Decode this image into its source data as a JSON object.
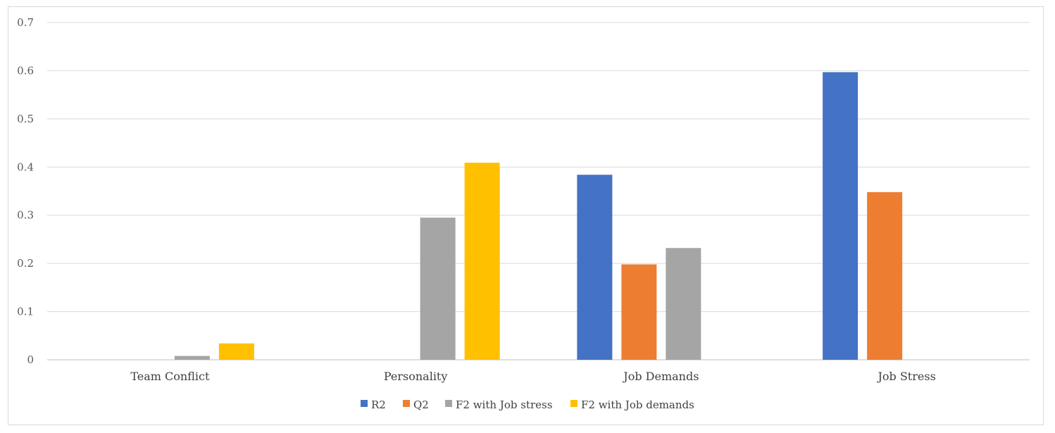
{
  "chart_data": {
    "type": "bar",
    "categories": [
      "Team Conflict",
      "Personality",
      "Job Demands",
      "Job Stress"
    ],
    "series": [
      {
        "name": "R2",
        "color": "#4472c4",
        "values": [
          null,
          null,
          0.384,
          0.597
        ]
      },
      {
        "name": "Q2",
        "color": "#ed7d31",
        "values": [
          null,
          null,
          0.198,
          0.348
        ]
      },
      {
        "name": "F2 with Job stress",
        "color": "#a5a5a5",
        "values": [
          0.008,
          0.295,
          0.232,
          null
        ]
      },
      {
        "name": "F2 with Job demands",
        "color": "#ffc000",
        "values": [
          0.034,
          0.409,
          null,
          null
        ]
      }
    ],
    "ylim": [
      0,
      0.7
    ],
    "yticks": [
      "0",
      "0.1",
      "0.2",
      "0.3",
      "0.4",
      "0.5",
      "0.6",
      "0.7"
    ],
    "grid": true,
    "legend_position": "bottom",
    "title": "",
    "xlabel": "",
    "ylabel": ""
  }
}
